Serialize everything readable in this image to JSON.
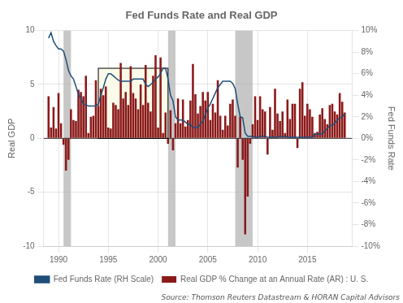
{
  "chart_data": {
    "type": "bar",
    "title": "Fed Funds Rate and Real GDP",
    "ylabel": "Real GDP",
    "y2label": "Fed Funds Rate",
    "annotations": [
      {
        "text": "Source: Thomson Reuters Datastream & HORAN Capital Advisors"
      }
    ],
    "x": [
      1989.0,
      1989.25,
      1989.5,
      1989.75,
      1990.0,
      1990.25,
      1990.5,
      1990.75,
      1991.0,
      1991.25,
      1991.5,
      1991.75,
      1992.0,
      1992.25,
      1992.5,
      1992.75,
      1993.0,
      1993.25,
      1993.5,
      1993.75,
      1994.0,
      1994.25,
      1994.5,
      1994.75,
      1995.0,
      1995.25,
      1995.5,
      1995.75,
      1996.0,
      1996.25,
      1996.5,
      1996.75,
      1997.0,
      1997.25,
      1997.5,
      1997.75,
      1998.0,
      1998.25,
      1998.5,
      1998.75,
      1999.0,
      1999.25,
      1999.5,
      1999.75,
      2000.0,
      2000.25,
      2000.5,
      2000.75,
      2001.0,
      2001.25,
      2001.5,
      2001.75,
      2002.0,
      2002.25,
      2002.5,
      2002.75,
      2003.0,
      2003.25,
      2003.5,
      2003.75,
      2004.0,
      2004.25,
      2004.5,
      2004.75,
      2005.0,
      2005.25,
      2005.5,
      2005.75,
      2006.0,
      2006.25,
      2006.5,
      2006.75,
      2007.0,
      2007.25,
      2007.5,
      2007.75,
      2008.0,
      2008.25,
      2008.5,
      2008.75,
      2009.0,
      2009.25,
      2009.5,
      2009.75,
      2010.0,
      2010.25,
      2010.5,
      2010.75,
      2011.0,
      2011.25,
      2011.5,
      2011.75,
      2012.0,
      2012.25,
      2012.5,
      2012.75,
      2013.0,
      2013.25,
      2013.5,
      2013.75,
      2014.0,
      2014.25,
      2014.5,
      2014.75,
      2015.0,
      2015.25,
      2015.5,
      2015.75,
      2016.0,
      2016.25,
      2016.5,
      2016.75,
      2017.0,
      2017.25,
      2017.5,
      2017.75,
      2018.0,
      2018.25,
      2018.5,
      2018.75
    ],
    "series": [
      {
        "name": "Fed Funds Rate (RH Scale)",
        "type": "line",
        "axis": "y2",
        "color": "#1F4E79",
        "values": [
          9.3,
          9.8,
          9.0,
          8.6,
          8.3,
          8.3,
          8.1,
          7.3,
          6.3,
          5.8,
          5.5,
          4.8,
          4.1,
          3.7,
          3.2,
          3.1,
          3.0,
          3.0,
          3.0,
          3.0,
          3.2,
          4.0,
          4.7,
          5.5,
          6.0,
          6.0,
          5.8,
          5.6,
          5.4,
          5.3,
          5.3,
          5.3,
          5.3,
          5.3,
          5.5,
          5.5,
          5.5,
          5.5,
          5.5,
          5.0,
          4.8,
          5.0,
          5.2,
          5.5,
          5.7,
          6.0,
          6.5,
          6.5,
          5.5,
          4.0,
          3.5,
          2.0,
          1.7,
          1.7,
          1.7,
          1.5,
          1.3,
          1.3,
          1.0,
          1.0,
          1.0,
          1.3,
          1.6,
          2.2,
          2.8,
          3.2,
          3.7,
          4.2,
          4.7,
          5.0,
          5.3,
          5.3,
          5.3,
          5.3,
          5.1,
          4.6,
          3.2,
          2.0,
          1.9,
          0.5,
          0.2,
          0.2,
          0.2,
          0.1,
          0.1,
          0.2,
          0.2,
          0.2,
          0.1,
          0.1,
          0.1,
          0.1,
          0.1,
          0.2,
          0.1,
          0.2,
          0.1,
          0.1,
          0.1,
          0.1,
          0.1,
          0.1,
          0.1,
          0.1,
          0.1,
          0.1,
          0.1,
          0.4,
          0.4,
          0.4,
          0.4,
          0.7,
          0.9,
          1.2,
          1.2,
          1.4,
          1.7,
          1.9,
          2.0,
          2.3
        ]
      },
      {
        "name": "Real GDP % Change at an Annual Rate (AR) : U. S.",
        "type": "bar",
        "color": "#8B1A1A",
        "values": [
          3.9,
          1.0,
          2.9,
          0.9,
          4.2,
          1.4,
          -0.6,
          -3.0,
          -2.0,
          2.7,
          1.7,
          1.6,
          4.5,
          4.3,
          3.9,
          5.8,
          0.5,
          2.0,
          2.1,
          5.4,
          3.0,
          4.6,
          4.0,
          4.8,
          1.0,
          0.9,
          3.3,
          3.1,
          2.7,
          7.0,
          3.7,
          4.3,
          3.1,
          6.7,
          4.2,
          3.7,
          2.7,
          5.0,
          3.1,
          6.8,
          3.3,
          2.5,
          5.8,
          7.7,
          1.0,
          7.5,
          0.5,
          2.4,
          -0.5,
          2.6,
          -1.1,
          1.4,
          3.7,
          1.4,
          3.6,
          1.1,
          1.7,
          3.5,
          6.9,
          4.1,
          2.3,
          3.0,
          4.3,
          3.5,
          4.3,
          1.7,
          3.2,
          2.4,
          5.4,
          2.1,
          0.8,
          2.1,
          1.2,
          3.2,
          3.6,
          2.1,
          -2.7,
          2.0,
          -2.0,
          -8.9,
          -5.4,
          -0.5,
          1.3,
          3.9,
          1.7,
          3.9,
          2.7,
          2.5,
          -1.5,
          2.9,
          0.8,
          4.6,
          2.3,
          1.6,
          2.5,
          0.5,
          3.6,
          1.8,
          3.2,
          3.2,
          -0.9,
          4.6,
          5.2,
          2.1,
          3.2,
          2.7,
          2.0,
          0.5,
          0.6,
          2.2,
          2.8,
          1.8,
          1.3,
          3.1,
          3.2,
          2.5,
          2.2,
          4.2,
          3.4,
          2.4
        ]
      }
    ],
    "xlim": [
      1988.5,
      2019.5
    ],
    "xticks": [
      1990,
      1995,
      2000,
      2005,
      2010,
      2015
    ],
    "ylim": [
      -10,
      10
    ],
    "yticks": [
      -10,
      -5,
      0,
      5,
      10
    ],
    "y2lim": [
      -10,
      10
    ],
    "y2ticks": [
      {
        "value": -10,
        "label": "-10%"
      },
      {
        "value": -8,
        "label": "-8%"
      },
      {
        "value": -6,
        "label": "-6%"
      },
      {
        "value": -4,
        "label": "-4%"
      },
      {
        "value": -2,
        "label": "-2%"
      },
      {
        "value": 0,
        "label": "0%"
      },
      {
        "value": 2,
        "label": "2%"
      },
      {
        "value": 4,
        "label": "4%"
      },
      {
        "value": 6,
        "label": "6%"
      },
      {
        "value": 8,
        "label": "8%"
      },
      {
        "value": 10,
        "label": "10%"
      }
    ],
    "recession_bands": {
      "color": "#A9A9A9",
      "ranges": [
        [
          1990.5,
          1991.25
        ],
        [
          2001.0,
          2001.75
        ],
        [
          2007.75,
          2009.5
        ]
      ]
    },
    "highlight_box": {
      "color": "#FAFAE8",
      "x": [
        1994.0,
        2001.0
      ],
      "y": [
        0.0,
        6.5
      ]
    },
    "grid": true,
    "legend": "bottom"
  }
}
